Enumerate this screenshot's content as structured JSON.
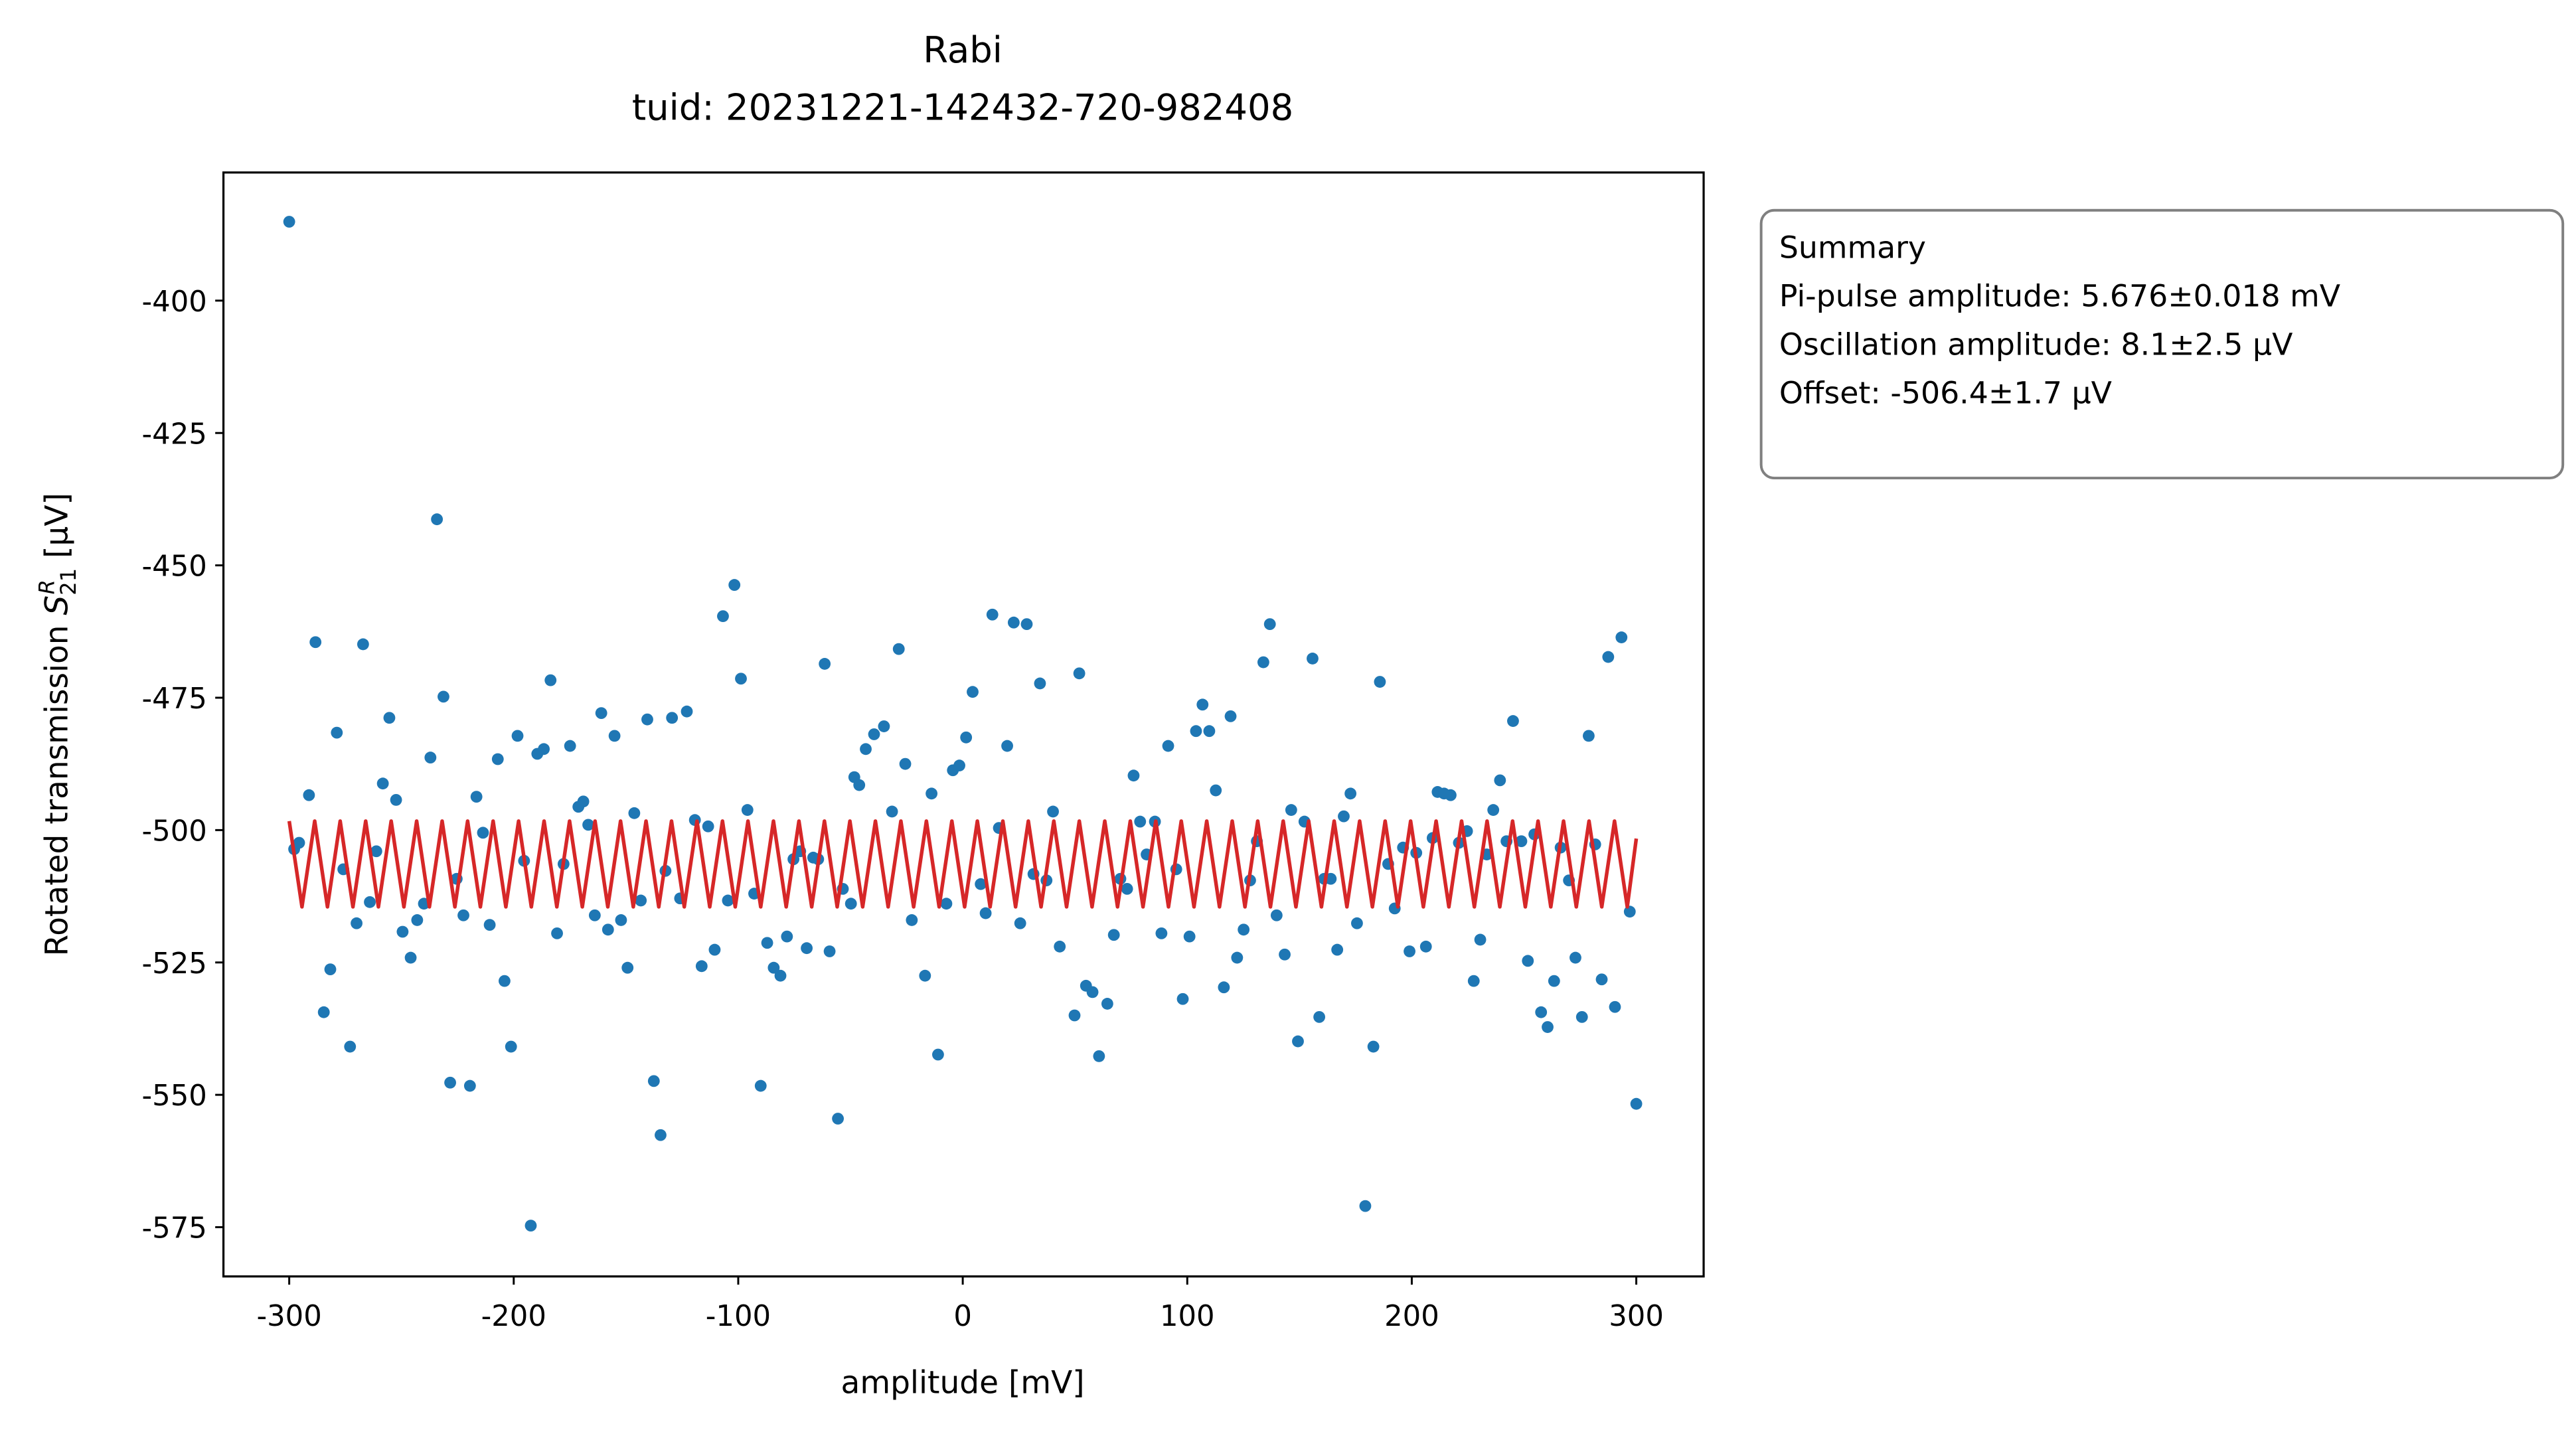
{
  "chart_data": {
    "type": "scatter",
    "title": "Rabi",
    "subtitle": "tuid: 20231221-142432-720-982408",
    "xlabel": "amplitude [mV]",
    "ylabel": {
      "text": "Rotated transmission",
      "symbol": "S",
      "subscript": "21",
      "superscript": "R",
      "unit": "[μV]"
    },
    "annotation": [
      "Summary",
      "Pi-pulse amplitude: 5.676±0.018 mV",
      "Oscillation amplitude: 8.1±2.5 μV",
      "Offset: -506.4±1.7 μV"
    ],
    "xlim": [
      -329.3,
      330
    ],
    "ylim": [
      -584.3,
      -375.8
    ],
    "xticks": [
      -300,
      -200,
      -100,
      0,
      100,
      200,
      300
    ],
    "yticks": [
      -575,
      -550,
      -525,
      -500,
      -475,
      -450,
      -425,
      -400
    ],
    "grid": false,
    "series": [
      {
        "type": "scatter",
        "color": "#1f77b4",
        "x": [
          -300,
          -297.8,
          -295.6,
          -291.2,
          -288.3,
          -284.6,
          -281.7,
          -278.8,
          -275.9,
          -272.9,
          -270,
          -267.1,
          -264.1,
          -261.2,
          -258.3,
          -255.4,
          -252.4,
          -249.5,
          -245.9,
          -243,
          -240,
          -237.1,
          -234.2,
          -231.3,
          -228.3,
          -225.4,
          -222.4,
          -219.5,
          -216.6,
          -213.7,
          -210.7,
          -207.1,
          -204.1,
          -201.2,
          -198.3,
          -195.4,
          -192.4,
          -189.5,
          -186.6,
          -183.6,
          -180.7,
          -177.8,
          -174.9,
          -171.2,
          -169,
          -166.8,
          -163.9,
          -161,
          -158,
          -155.1,
          -152.2,
          -149.3,
          -146.3,
          -143.4,
          -140.5,
          -137.6,
          -134.6,
          -132.4,
          -129.5,
          -125.9,
          -122.9,
          -119.3,
          -116.3,
          -113.4,
          -110.5,
          -106.8,
          -104.6,
          -101.7,
          -98.8,
          -95.9,
          -92.9,
          -90,
          -87.1,
          -84.2,
          -81.2,
          -78.3,
          -75.4,
          -72.4,
          -69.5,
          -66.6,
          -64.4,
          -61.5,
          -59.3,
          -55.6,
          -53.4,
          -49.8,
          -48.3,
          -46.1,
          -43.2,
          -39.5,
          -35.1,
          -31.5,
          -28.5,
          -25.6,
          -22.7,
          -16.8,
          -13.9,
          -11,
          -7.3,
          -4.4,
          -1.5,
          1.5,
          4.4,
          8,
          10.2,
          13.2,
          16.1,
          19.8,
          22.7,
          25.6,
          28.5,
          31.5,
          34.4,
          37.3,
          40.2,
          43.2,
          49.8,
          51.9,
          54.9,
          57.8,
          60.7,
          64.4,
          67.3,
          70.2,
          73.2,
          76.1,
          79,
          81.9,
          85.6,
          88.5,
          91.5,
          95.1,
          98,
          101,
          103.9,
          106.8,
          109.8,
          112.7,
          116.3,
          119.3,
          122.2,
          125.1,
          128,
          131,
          133.9,
          136.8,
          139.8,
          143.4,
          146.3,
          149.3,
          152.2,
          155.8,
          158.8,
          161,
          163.9,
          166.8,
          169.7,
          172.7,
          175.6,
          179.3,
          182.9,
          185.8,
          189.5,
          192.4,
          196.1,
          199,
          202,
          206.3,
          209.3,
          211.5,
          214.4,
          217.3,
          221,
          224.6,
          227.6,
          230.5,
          233.4,
          236.3,
          239.3,
          242.2,
          245.1,
          248.8,
          251.7,
          254.6,
          257.6,
          260.5,
          263.4,
          266.3,
          270,
          272.9,
          275.8,
          278.8,
          281.7,
          284.6,
          287.5,
          290.5,
          293.4,
          297.1,
          300
        ],
        "values": [
          -385.1,
          -503.6,
          -502.4,
          -493.4,
          -464.5,
          -534.4,
          -526.3,
          -481.6,
          -507.4,
          -540.9,
          -517.6,
          -464.9,
          -513.6,
          -504,
          -491.2,
          -478.8,
          -494.3,
          -519.2,
          -524.1,
          -517,
          -513.9,
          -486.3,
          -441.3,
          -474.8,
          -547.7,
          -509.2,
          -516.1,
          -548.3,
          -493.7,
          -500.5,
          -517.9,
          -486.6,
          -528.5,
          -540.9,
          -482.2,
          -505.8,
          -574.7,
          -485.6,
          -484.7,
          -471.7,
          -519.5,
          -506.4,
          -484.1,
          -495.6,
          -494.6,
          -499,
          -516.1,
          -477.9,
          -518.8,
          -482.2,
          -517,
          -526,
          -496.8,
          -513.3,
          -479.1,
          -547.4,
          -557.6,
          -507.7,
          -478.8,
          -512.9,
          -477.6,
          -498.1,
          -525.7,
          -499.3,
          -522.6,
          -459.6,
          -513.3,
          -453.7,
          -471.4,
          -496.2,
          -512,
          -548.3,
          -521.3,
          -526,
          -527.5,
          -520.1,
          -505.5,
          -504,
          -522.3,
          -505.2,
          -505.5,
          -468.6,
          -522.9,
          -554.5,
          -511.1,
          -513.9,
          -490,
          -491.5,
          -484.7,
          -481.9,
          -480.4,
          -496.5,
          -465.8,
          -487.5,
          -517,
          -527.5,
          -493.1,
          -542.4,
          -513.9,
          -488.7,
          -487.8,
          -482.5,
          -473.9,
          -510.2,
          -515.7,
          -459.3,
          -499.6,
          -484.1,
          -460.8,
          -517.6,
          -461.1,
          -508.3,
          -472.3,
          -509.5,
          -496.5,
          -522,
          -535,
          -470.4,
          -529.4,
          -530.6,
          -542.7,
          -532.8,
          -519.8,
          -509.2,
          -511.1,
          -489.7,
          -498.4,
          -504.6,
          -498.4,
          -519.5,
          -484.1,
          -507.4,
          -531.9,
          -520.1,
          -481.3,
          -476.3,
          -481.3,
          -492.5,
          -529.7,
          -478.5,
          -524.1,
          -518.8,
          -509.5,
          -502.1,
          -468.3,
          -461.1,
          -516.1,
          -523.5,
          -496.2,
          -539.9,
          -498.4,
          -467.6,
          -535.3,
          -509.2,
          -509.2,
          -522.6,
          -497.4,
          -493.1,
          -517.6,
          -571,
          -540.9,
          -472,
          -506.4,
          -514.8,
          -503.3,
          -522.9,
          -504.3,
          -522,
          -501.5,
          -492.8,
          -493.1,
          -493.4,
          -502.4,
          -500.2,
          -528.5,
          -520.7,
          -504.6,
          -496.2,
          -490.6,
          -502.1,
          -479.4,
          -502.1,
          -524.7,
          -500.8,
          -534.4,
          -537.2,
          -528.5,
          -503.3,
          -509.5,
          -524.1,
          -535.3,
          -482.2,
          -502.7,
          -528.2,
          -467.3,
          -533.4,
          -463.6,
          -515.4,
          -551.7
        ]
      },
      {
        "type": "line",
        "color": "#d62728",
        "x": [
          -300,
          -294.32,
          -288.65,
          -282.97,
          -277.3,
          -271.62,
          -265.94,
          -260.27,
          -254.59,
          -248.92,
          -243.24,
          -237.56,
          -231.89,
          -226.21,
          -220.54,
          -214.86,
          -209.18,
          -203.51,
          -197.83,
          -192.16,
          -186.48,
          -180.8,
          -175.13,
          -169.45,
          -163.78,
          -158.1,
          -152.42,
          -146.75,
          -141.07,
          -135.4,
          -129.72,
          -124.04,
          -118.37,
          -112.69,
          -107.02,
          -101.34,
          -95.66,
          -89.99,
          -84.31,
          -78.64,
          -72.96,
          -67.28,
          -61.61,
          -55.93,
          -50.26,
          -44.58,
          -38.9,
          -33.23,
          -27.55,
          -21.88,
          -16.2,
          -10.52,
          -4.85,
          0.83,
          6.5,
          12.18,
          17.86,
          23.53,
          29.21,
          34.88,
          40.56,
          46.24,
          51.91,
          57.59,
          63.26,
          68.94,
          74.62,
          80.29,
          85.97,
          91.64,
          97.32,
          103,
          108.67,
          114.35,
          120.02,
          125.7,
          131.38,
          137.05,
          142.73,
          148.4,
          154.08,
          159.76,
          165.43,
          171.11,
          176.78,
          182.46,
          188.14,
          193.81,
          199.49,
          205.16,
          210.84,
          216.52,
          222.19,
          227.87,
          233.54,
          239.22,
          244.9,
          250.57,
          256.25,
          261.92,
          267.6,
          273.28,
          278.95,
          284.63,
          290.3,
          295.98,
          300
        ],
        "values": [
          -498.3,
          -514.5,
          -498.3,
          -514.5,
          -498.3,
          -514.5,
          -498.3,
          -514.5,
          -498.3,
          -514.5,
          -498.3,
          -514.5,
          -498.3,
          -514.5,
          -498.3,
          -514.5,
          -498.3,
          -514.5,
          -498.3,
          -514.5,
          -498.3,
          -514.5,
          -498.3,
          -514.5,
          -498.3,
          -514.5,
          -498.3,
          -514.5,
          -498.3,
          -514.5,
          -498.3,
          -514.5,
          -498.3,
          -514.5,
          -498.3,
          -514.5,
          -498.3,
          -514.5,
          -498.3,
          -514.5,
          -498.3,
          -514.5,
          -498.3,
          -514.5,
          -498.3,
          -514.5,
          -498.3,
          -514.5,
          -498.3,
          -514.5,
          -498.3,
          -514.5,
          -498.3,
          -514.5,
          -498.3,
          -514.5,
          -498.3,
          -514.5,
          -498.3,
          -514.5,
          -498.3,
          -514.5,
          -498.3,
          -514.5,
          -498.3,
          -514.5,
          -498.3,
          -514.5,
          -498.3,
          -514.5,
          -498.3,
          -514.5,
          -498.3,
          -514.5,
          -498.3,
          -514.5,
          -498.3,
          -514.5,
          -498.3,
          -514.5,
          -498.3,
          -514.5,
          -498.3,
          -514.5,
          -498.3,
          -514.5,
          -498.3,
          -514.5,
          -498.3,
          -514.5,
          -498.3,
          -514.5,
          -498.3,
          -514.5,
          -498.3,
          -514.5,
          -498.3,
          -514.5,
          -498.3,
          -514.5,
          -498.3,
          -514.5,
          -498.3,
          -514.5,
          -498.3,
          -514.5,
          -501.6
        ]
      }
    ]
  }
}
